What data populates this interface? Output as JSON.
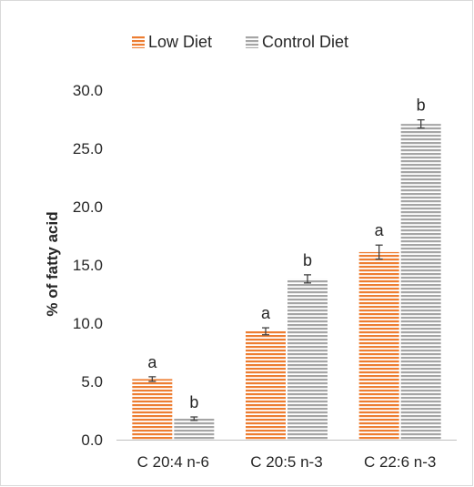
{
  "chart_data": {
    "type": "bar",
    "title": "",
    "xlabel": "",
    "ylabel": "% of fatty acid",
    "ylim": [
      0,
      30
    ],
    "yticks": [
      0,
      5,
      10,
      15,
      20,
      25,
      30
    ],
    "ytick_labels": [
      "0.0",
      "5.0",
      "10.0",
      "15.0",
      "20.0",
      "25.0",
      "30.0"
    ],
    "grid": false,
    "legend_position": "top",
    "categories": [
      "C 20:4 n-6",
      "C 20:5 n-3",
      "C 22:6 n-3"
    ],
    "series": [
      {
        "name": "Low Diet",
        "color": "#ED7D31",
        "pattern": "horizontal-stripes",
        "values": [
          5.2,
          9.3,
          16.1
        ],
        "errors": [
          0.2,
          0.3,
          0.6
        ],
        "labels": [
          "a",
          "a",
          "a"
        ]
      },
      {
        "name": "Control Diet",
        "color": "#A5A5A5",
        "pattern": "horizontal-stripes",
        "values": [
          1.8,
          13.8,
          27.1
        ],
        "errors": [
          0.15,
          0.35,
          0.35
        ],
        "labels": [
          "b",
          "b",
          "b"
        ]
      }
    ]
  }
}
